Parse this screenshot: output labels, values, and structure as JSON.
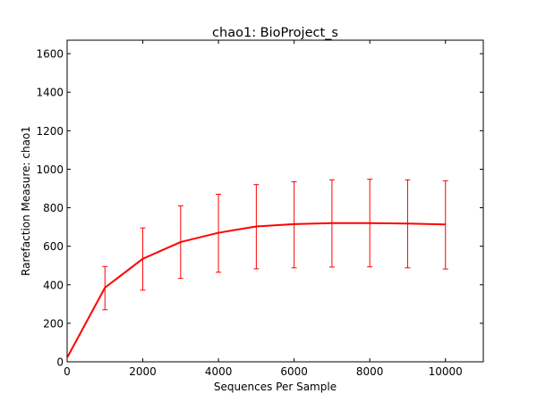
{
  "chart_data": {
    "type": "line",
    "title": "chao1: BioProject_s",
    "xlabel": "Sequences Per Sample",
    "ylabel": "Rarefaction Measure: chao1",
    "xlim": [
      0,
      11000
    ],
    "ylim": [
      0,
      1670
    ],
    "xticks": [
      0,
      2000,
      4000,
      6000,
      8000,
      10000
    ],
    "yticks": [
      0,
      200,
      400,
      600,
      800,
      1000,
      1200,
      1400,
      1600
    ],
    "xtick_labels": [
      "0",
      "2000",
      "4000",
      "6000",
      "8000",
      "10000"
    ],
    "ytick_labels": [
      "0",
      "200",
      "400",
      "600",
      "800",
      "1000",
      "1200",
      "1400",
      "1600"
    ],
    "grid": false,
    "series": [
      {
        "color": "#ff0000",
        "x": [
          10,
          1000,
          2000,
          3000,
          4000,
          5000,
          6000,
          7000,
          8000,
          9000,
          10000
        ],
        "y": [
          25,
          385,
          535,
          622,
          670,
          703,
          715,
          720,
          720,
          718,
          713
        ],
        "error_lower": [
          null,
          270,
          372,
          433,
          465,
          483,
          488,
          492,
          493,
          488,
          482
        ],
        "error_upper": [
          null,
          495,
          695,
          810,
          870,
          920,
          935,
          945,
          948,
          945,
          940
        ]
      }
    ]
  }
}
